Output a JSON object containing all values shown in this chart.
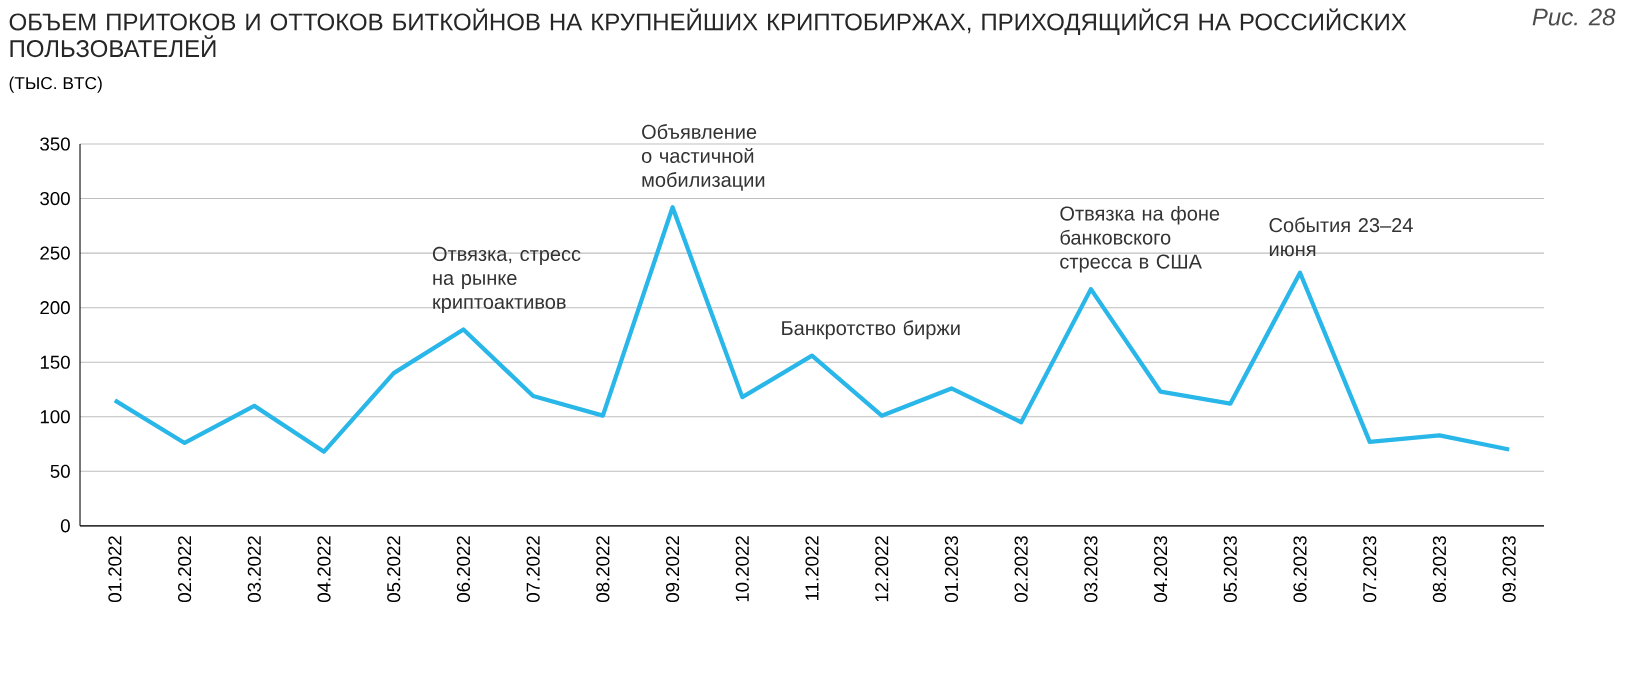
{
  "chart_data": {
    "type": "line",
    "title": "ОБЪЕМ ПРИТОКОВ И ОТТОКОВ БИТКОЙНОВ НА КРУПНЕЙШИХ КРИПТОБИРЖАХ, ПРИХОДЯЩИЙСЯ НА РОССИЙСКИХ ПОЛЬЗОВАТЕЛЕЙ",
    "subtitle": "(ТЫС. BTC)",
    "categories": [
      "01.2022",
      "02.2022",
      "03.2022",
      "04.2022",
      "05.2022",
      "06.2022",
      "07.2022",
      "08.2022",
      "09.2022",
      "10.2022",
      "11.2022",
      "12.2022",
      "01.2023",
      "02.2023",
      "03.2023",
      "04.2023",
      "05.2023",
      "06.2023",
      "07.2023",
      "08.2023",
      "09.2023"
    ],
    "series": [
      {
        "color": "#29b6e8",
        "values": [
          115,
          76,
          110,
          68,
          140,
          180,
          119,
          101,
          292,
          118,
          156,
          101,
          126,
          95,
          217,
          123,
          112,
          232,
          77,
          83,
          70
        ]
      }
    ],
    "ylim": [
      0,
      350
    ],
    "yticks": [
      0,
      50,
      100,
      150,
      200,
      250,
      300,
      350
    ],
    "grid": "y",
    "marker": "none",
    "line_style": "solid",
    "annotations": [
      "Рис. 28",
      {
        "text": "Отвязка, стресс на рынке криптоактивов",
        "x": "06.2022",
        "y": 180
      },
      {
        "text": "Объявление о частичной мобилизации",
        "x": "09.2022",
        "y": 292
      },
      {
        "text": "Банкротство биржи",
        "x": "11.2022",
        "y": 156
      },
      {
        "text": "Отвязка на фоне банковского стресса в США",
        "x": "03.2023",
        "y": 217
      },
      {
        "text": "События 23–24 июня",
        "x": "06.2023",
        "y": 232
      }
    ]
  }
}
